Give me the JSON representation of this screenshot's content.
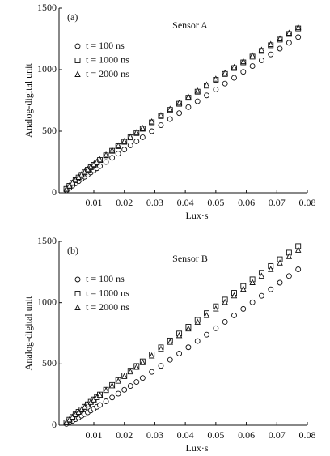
{
  "chart_data": [
    {
      "type": "scatter",
      "panel_label": "(a)",
      "title": "Sensor A",
      "xlabel": "Lux·s",
      "ylabel": "Analog-digital unit",
      "xlim": [
        -0.0014,
        0.08
      ],
      "ylim": [
        0,
        1500
      ],
      "xticks": [
        0.01,
        0.02,
        0.03,
        0.04,
        0.05,
        0.06,
        0.07,
        0.08
      ],
      "yticks": [
        0,
        500,
        1000,
        1500
      ],
      "x": [
        0.001,
        0.002,
        0.003,
        0.004,
        0.005,
        0.006,
        0.007,
        0.008,
        0.009,
        0.01,
        0.011,
        0.012,
        0.014,
        0.016,
        0.018,
        0.02,
        0.022,
        0.024,
        0.026,
        0.029,
        0.032,
        0.035,
        0.038,
        0.041,
        0.044,
        0.047,
        0.05,
        0.053,
        0.056,
        0.059,
        0.062,
        0.065,
        0.068,
        0.071,
        0.074,
        0.077
      ],
      "series": [
        {
          "name": "t = 100 ns",
          "marker": "circle",
          "color": "#111111",
          "values": [
            20,
            39,
            58,
            76,
            94,
            112,
            130,
            147,
            165,
            182,
            199,
            216,
            250,
            284,
            318,
            351,
            385,
            418,
            451,
            500,
            549,
            598,
            647,
            695,
            743,
            791,
            839,
            887,
            934,
            982,
            1029,
            1076,
            1124,
            1171,
            1218,
            1264
          ]
        },
        {
          "name": "t = 1000 ns",
          "marker": "square",
          "color": "#111111",
          "values": [
            31,
            56,
            80,
            102,
            124,
            146,
            166,
            187,
            207,
            227,
            247,
            266,
            304,
            341,
            378,
            414,
            450,
            485,
            520,
            572,
            623,
            673,
            723,
            772,
            821,
            870,
            918,
            965,
            1013,
            1059,
            1106,
            1152,
            1198,
            1244,
            1290,
            1335
          ]
        },
        {
          "name": "t = 2000 ns",
          "marker": "triangle",
          "color": "#111111",
          "values": [
            30,
            55,
            80,
            103,
            125,
            147,
            168,
            189,
            209,
            229,
            249,
            268,
            306,
            344,
            381,
            417,
            453,
            488,
            523,
            576,
            627,
            678,
            728,
            777,
            826,
            875,
            923,
            971,
            1018,
            1065,
            1112,
            1158,
            1204,
            1250,
            1296,
            1342
          ]
        }
      ]
    },
    {
      "type": "scatter",
      "panel_label": "(b)",
      "title": "Sensor B",
      "xlabel": "Lux·s",
      "ylabel": "Analog-digital unit",
      "xlim": [
        -0.0014,
        0.08
      ],
      "ylim": [
        0,
        1500
      ],
      "xticks": [
        0.01,
        0.02,
        0.03,
        0.04,
        0.05,
        0.06,
        0.07,
        0.08
      ],
      "yticks": [
        0,
        500,
        1000,
        1500
      ],
      "x": [
        0.001,
        0.002,
        0.003,
        0.004,
        0.005,
        0.006,
        0.007,
        0.008,
        0.009,
        0.01,
        0.011,
        0.012,
        0.014,
        0.016,
        0.018,
        0.02,
        0.022,
        0.024,
        0.026,
        0.029,
        0.032,
        0.035,
        0.038,
        0.041,
        0.044,
        0.047,
        0.05,
        0.053,
        0.056,
        0.059,
        0.062,
        0.065,
        0.068,
        0.071,
        0.074,
        0.077
      ],
      "series": [
        {
          "name": "t = 100 ns",
          "marker": "circle",
          "color": "#111111",
          "values": [
            11,
            23,
            36,
            49,
            63,
            77,
            91,
            105,
            120,
            135,
            150,
            165,
            195,
            226,
            257,
            289,
            320,
            353,
            385,
            435,
            484,
            534,
            585,
            636,
            687,
            739,
            791,
            843,
            896,
            949,
            1002,
            1056,
            1109,
            1163,
            1217,
            1272
          ]
        },
        {
          "name": "t = 1000 ns",
          "marker": "square",
          "color": "#111111",
          "values": [
            23,
            45,
            67,
            88,
            109,
            129,
            150,
            170,
            191,
            210,
            230,
            250,
            289,
            328,
            368,
            406,
            445,
            483,
            521,
            578,
            635,
            691,
            748,
            803,
            859,
            914,
            970,
            1025,
            1080,
            1135,
            1190,
            1244,
            1299,
            1354,
            1408,
            1461
          ]
        },
        {
          "name": "t = 2000 ns",
          "marker": "triangle",
          "color": "#111111",
          "values": [
            23,
            44,
            66,
            86,
            106,
            127,
            147,
            166,
            186,
            206,
            225,
            244,
            283,
            321,
            359,
            397,
            435,
            472,
            510,
            565,
            620,
            676,
            731,
            785,
            840,
            894,
            948,
            1002,
            1055,
            1110,
            1163,
            1216,
            1270,
            1323,
            1376,
            1428
          ]
        }
      ]
    }
  ]
}
